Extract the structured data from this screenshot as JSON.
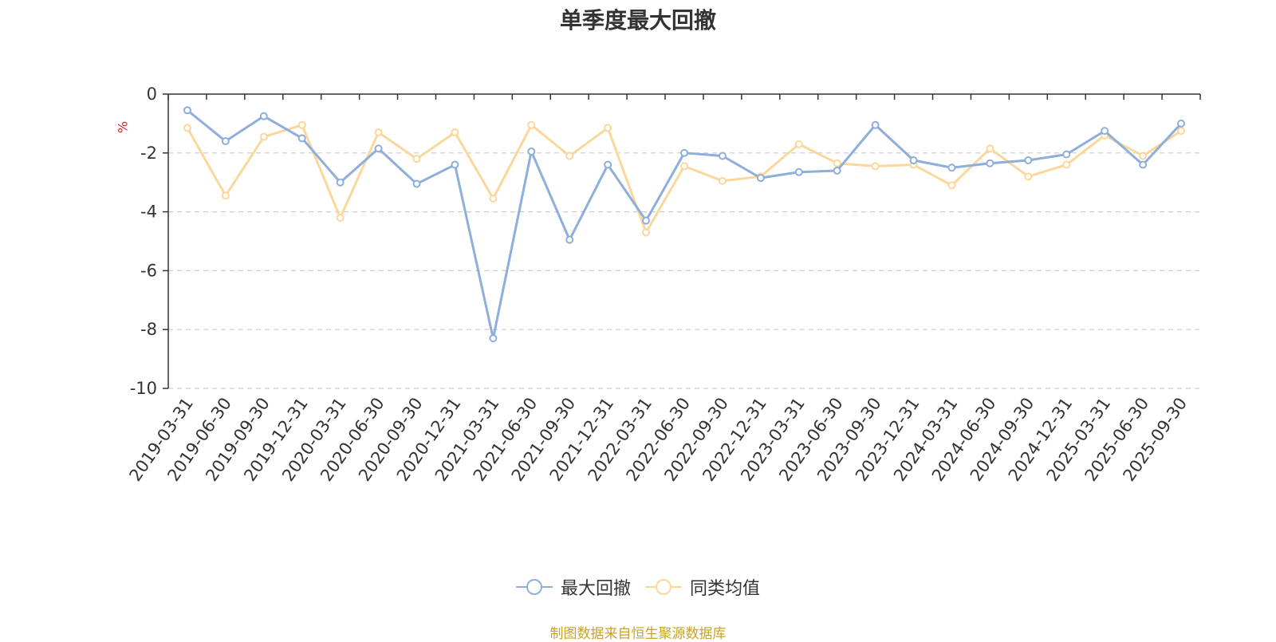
{
  "chart_data": {
    "type": "line",
    "title": "单季度最大回撤",
    "ylabel": "%",
    "ylim": [
      -10,
      0
    ],
    "yticks": [
      0,
      -2,
      -4,
      -6,
      -8,
      -10
    ],
    "grid": true,
    "legend_position": "bottom",
    "categories": [
      "2019-03-31",
      "2019-06-30",
      "2019-09-30",
      "2019-12-31",
      "2020-03-31",
      "2020-06-30",
      "2020-09-30",
      "2020-12-31",
      "2021-03-31",
      "2021-06-30",
      "2021-09-30",
      "2021-12-31",
      "2022-03-31",
      "2022-06-30",
      "2022-09-30",
      "2022-12-31",
      "2023-03-31",
      "2023-06-30",
      "2023-09-30",
      "2023-12-31",
      "2024-03-31",
      "2024-06-30",
      "2024-09-30",
      "2024-12-31",
      "2025-03-31",
      "2025-06-30",
      "2025-09-30"
    ],
    "series": [
      {
        "name": "最大回撤",
        "color": "#8eaedc",
        "values": [
          -0.55,
          -1.6,
          -0.75,
          -1.5,
          -3.0,
          -1.85,
          -3.05,
          -2.4,
          -8.3,
          -1.95,
          -4.95,
          -2.4,
          -4.3,
          -2.0,
          -2.1,
          -2.85,
          -2.65,
          -2.6,
          -1.05,
          -2.25,
          -2.5,
          -2.35,
          -2.25,
          -2.05,
          -1.25,
          -2.4,
          -1.0
        ]
      },
      {
        "name": "同类均值",
        "color": "#fbd79b",
        "values": [
          -1.15,
          -3.45,
          -1.45,
          -1.05,
          -4.2,
          -1.3,
          -2.2,
          -1.3,
          -3.55,
          -1.05,
          -2.1,
          -1.15,
          -4.7,
          -2.45,
          -2.95,
          -2.8,
          -1.7,
          -2.35,
          -2.45,
          -2.4,
          -3.1,
          -1.85,
          -2.8,
          -2.4,
          -1.4,
          -2.1,
          -1.25
        ]
      }
    ]
  },
  "source_note": "制图数据来自恒生聚源数据库"
}
